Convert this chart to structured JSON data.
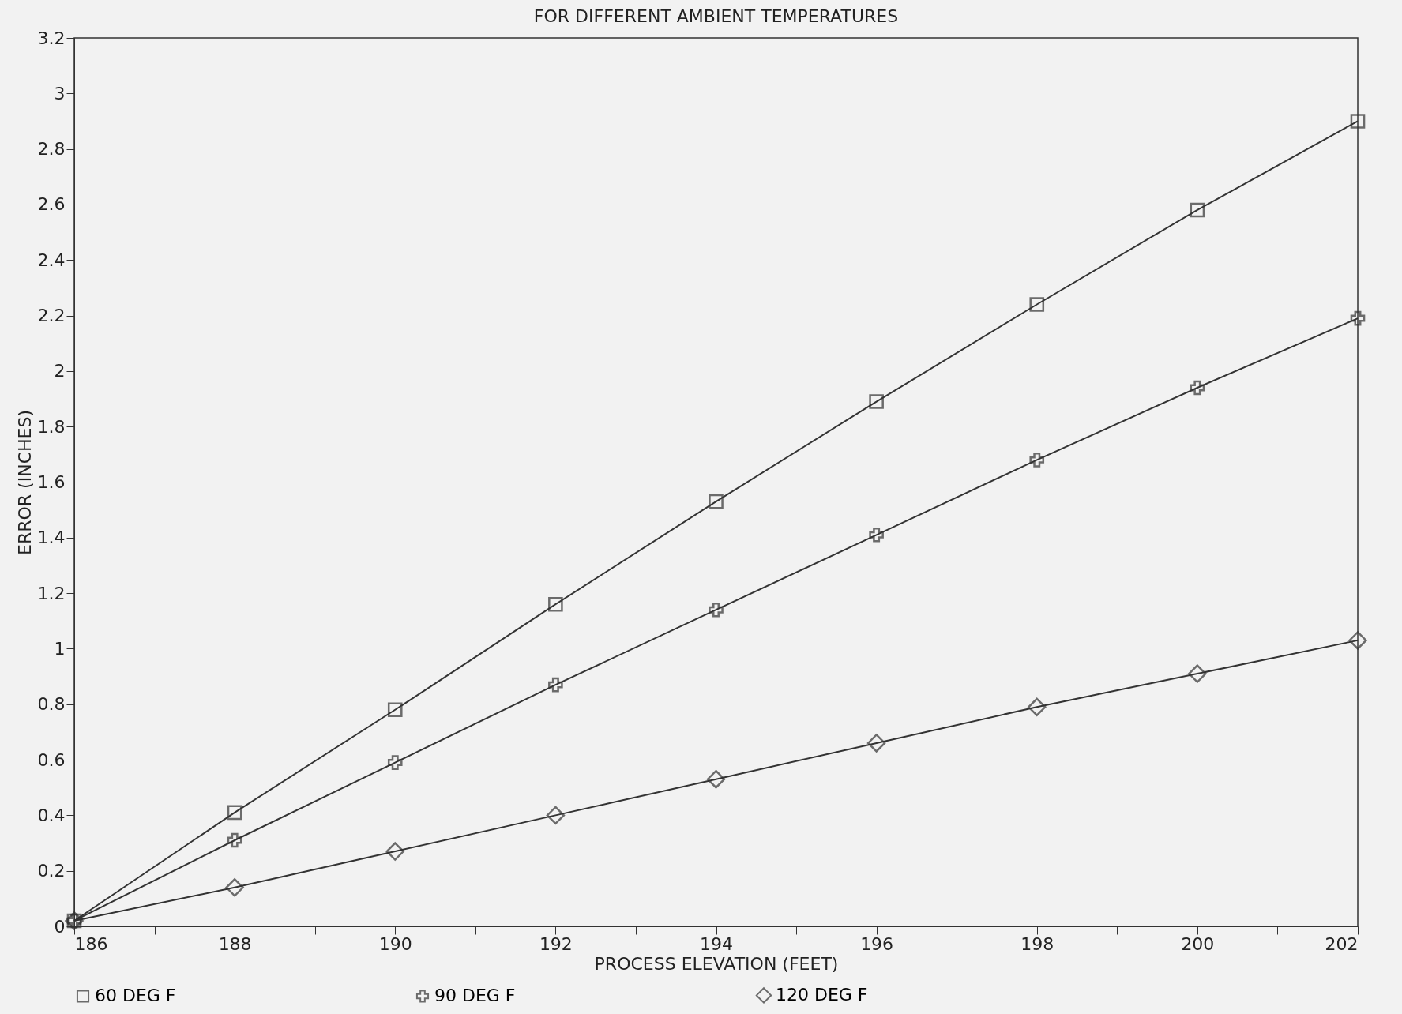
{
  "chart_data": {
    "type": "line",
    "title": "FOR DIFFERENT AMBIENT TEMPERATURES",
    "xlabel": "PROCESS ELEVATION (FEET)",
    "ylabel": "ERROR (INCHES)",
    "x": [
      186,
      188,
      190,
      192,
      194,
      196,
      198,
      200,
      202
    ],
    "series": [
      {
        "name": "60 DEG F",
        "color": "#333333",
        "marker": "square",
        "values": [
          0.02,
          0.41,
          0.78,
          1.16,
          1.53,
          1.89,
          2.24,
          2.58,
          2.9
        ]
      },
      {
        "name": "90 DEG F",
        "color": "#333333",
        "marker": "cross",
        "values": [
          0.02,
          0.31,
          0.59,
          0.87,
          1.14,
          1.41,
          1.68,
          1.94,
          2.19
        ]
      },
      {
        "name": "120 DEG F",
        "color": "#333333",
        "marker": "diamond",
        "values": [
          0.02,
          0.14,
          0.27,
          0.4,
          0.53,
          0.66,
          0.79,
          0.91,
          1.03
        ]
      }
    ],
    "xlim": [
      186,
      202
    ],
    "xticks": [
      186,
      {
        "value": 187,
        "label": null
      },
      188,
      {
        "value": 189,
        "label": null
      },
      190,
      {
        "value": 191,
        "label": null
      },
      192,
      {
        "value": 193,
        "label": null
      },
      194,
      {
        "value": 195,
        "label": null
      },
      196,
      {
        "value": 197,
        "label": null
      },
      198,
      {
        "value": 199,
        "label": null
      },
      200,
      {
        "value": 201,
        "label": null
      },
      202
    ],
    "ylim": [
      0,
      3.2
    ],
    "yticks": [
      0,
      0.2,
      0.4,
      0.6,
      0.8,
      1,
      1.2,
      1.4,
      1.6,
      1.8,
      2,
      2.2,
      2.4,
      2.6,
      2.8,
      3,
      3.2
    ],
    "grid": false,
    "legend": "bottom",
    "line_style": "solid"
  }
}
